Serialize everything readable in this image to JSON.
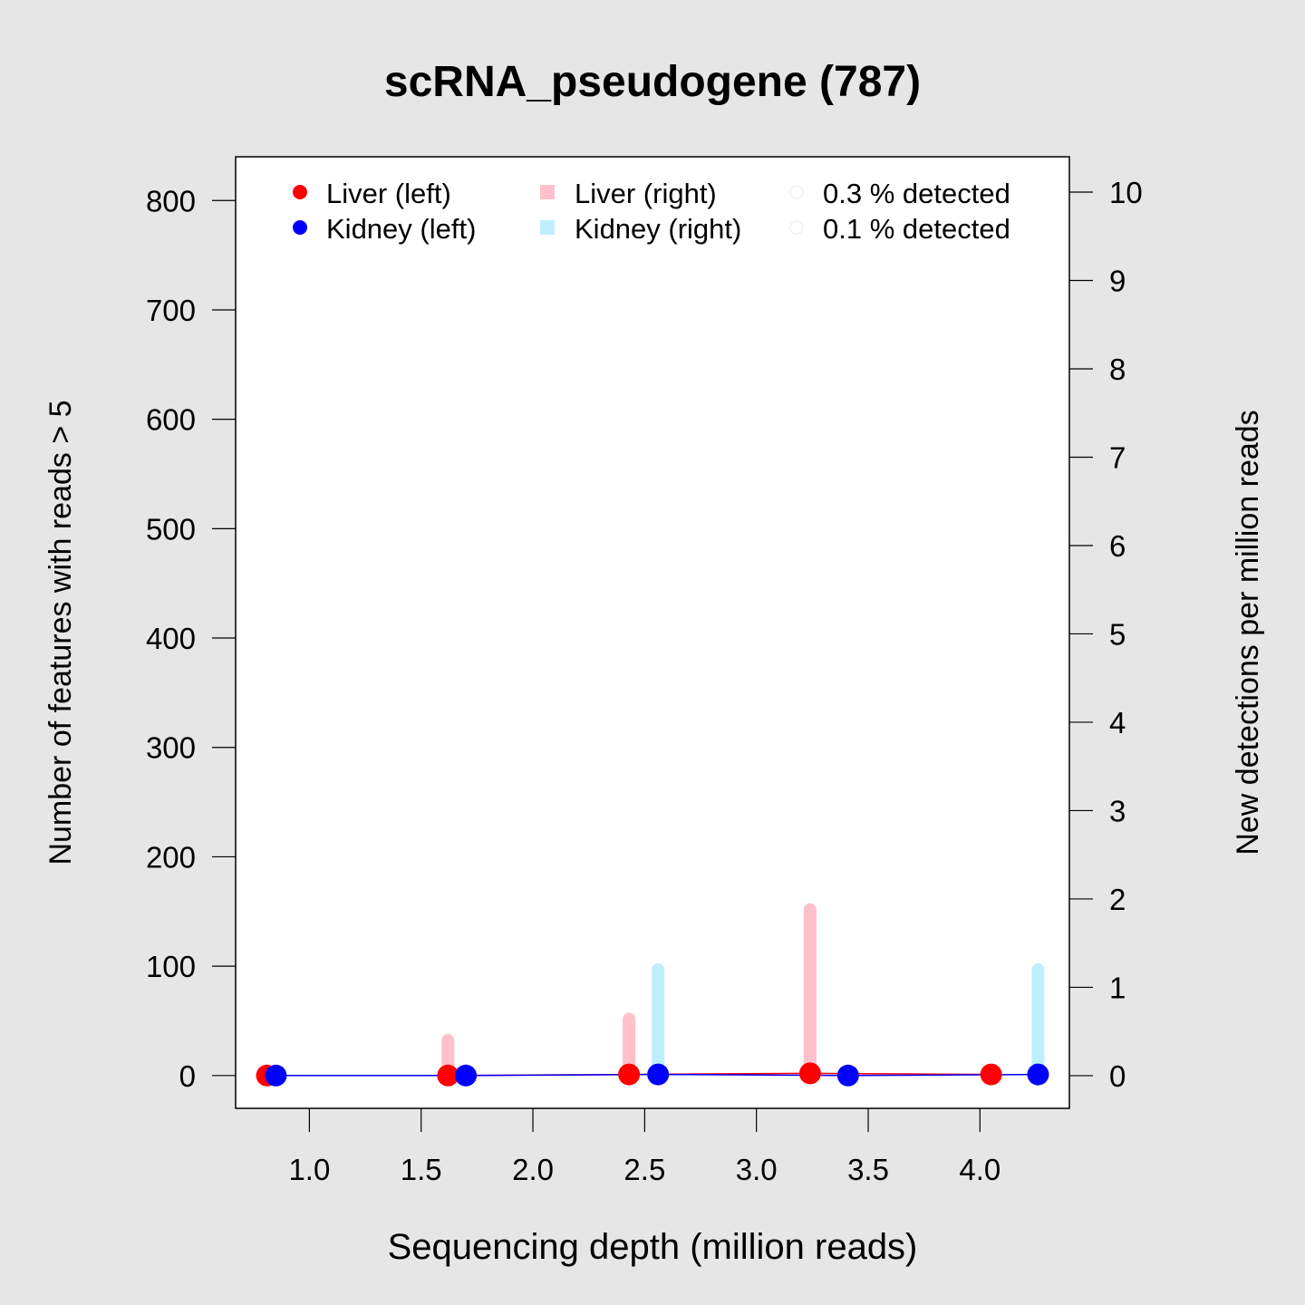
{
  "chart_data": {
    "type": "line",
    "title": "scRNA_pseudogene (787)",
    "xlabel": "Sequencing depth (million reads)",
    "ylabel": "Number of features with reads > 5",
    "y2label": "New detections per million reads",
    "xlim": [
      0.67,
      4.4
    ],
    "ylim": [
      -30,
      840
    ],
    "y2lim": [
      -0.37,
      10.4
    ],
    "xticks": [
      "1.0",
      "1.5",
      "2.0",
      "2.5",
      "3.0",
      "3.5",
      "4.0"
    ],
    "yticks": [
      "0",
      "100",
      "200",
      "300",
      "400",
      "500",
      "600",
      "700",
      "800"
    ],
    "y2ticks": [
      "0",
      "1",
      "2",
      "3",
      "4",
      "5",
      "6",
      "7",
      "8",
      "9",
      "10"
    ],
    "grid": false,
    "legend_position": "top",
    "colors": {
      "liver_left": "#ff0000",
      "kidney_left": "#0000ff",
      "liver_right": "#ffc0cb",
      "kidney_right": "#bfefff",
      "background": "#e6e6e6",
      "plot_bg": "#ffffff"
    },
    "legend": {
      "liver_left": "Liver (left)",
      "kidney_left": "Kidney (left)",
      "liver_right": "Liver (right)",
      "kidney_right": "Kidney (right)",
      "pct_03": "0.3 % detected",
      "pct_01": "0.1 % detected"
    },
    "series": [
      {
        "name": "Liver (left)",
        "axis": "left",
        "kind": "points",
        "x": [
          0.81,
          1.62,
          2.43,
          3.24,
          4.05
        ],
        "y": [
          0,
          0,
          1,
          2,
          1
        ]
      },
      {
        "name": "Kidney (left)",
        "axis": "left",
        "kind": "points",
        "x": [
          0.85,
          1.7,
          2.56,
          3.41,
          4.26
        ],
        "y": [
          0,
          0,
          1,
          0,
          1
        ]
      },
      {
        "name": "Liver (right)",
        "axis": "right",
        "kind": "bars",
        "x": [
          1.62,
          2.43,
          3.24
        ],
        "y": [
          0.4,
          0.64,
          1.88
        ]
      },
      {
        "name": "Kidney (right)",
        "axis": "right",
        "kind": "bars",
        "x": [
          2.56,
          4.26
        ],
        "y": [
          1.2,
          1.2
        ]
      }
    ]
  }
}
